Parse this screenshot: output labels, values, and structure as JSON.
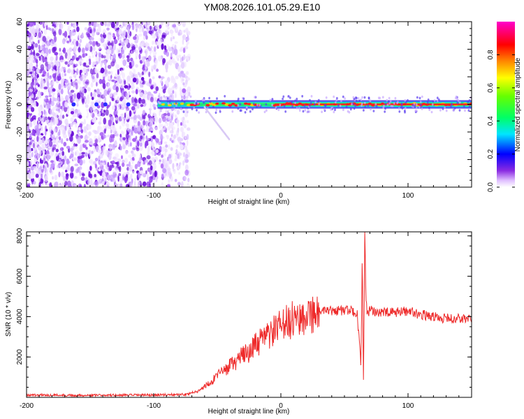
{
  "title": "YM08.2026.101.05.29.E10",
  "colors": {
    "snr_line": "#ee2a2a",
    "axes": "#000000"
  },
  "chart_data": [
    {
      "type": "heatmap",
      "title": "YM08.2026.101.05.29.E10",
      "xlabel": "Height of straight line (km)",
      "ylabel": "Frequency (Hz)",
      "xlim": [
        -200,
        150
      ],
      "ylim": [
        -60,
        60
      ],
      "xticks": [
        -200,
        -100,
        0,
        100
      ],
      "yticks": [
        -60,
        -40,
        -20,
        0,
        20,
        40,
        60
      ],
      "colorbar": {
        "label": "Normalized spectral amplitude",
        "range": [
          0.0,
          1.0
        ],
        "ticks": [
          0.0,
          0.2,
          0.4,
          0.6,
          0.8
        ],
        "colormap": "rainbow (magenta-blue-cyan-green-yellow-red-magenta)"
      },
      "features": [
        {
          "x_range": [
            -200,
            -75
          ],
          "freq_range": [
            -60,
            60
          ],
          "amplitude": "0.05-0.3 (scattered noise)"
        },
        {
          "x_range": [
            -97,
            150
          ],
          "frequency": 0,
          "amplitude": "0.4-1.0 (narrow band at 0 Hz)"
        }
      ]
    },
    {
      "type": "line",
      "xlabel": "Height of straight line (km)",
      "ylabel": "SNR (10 * v/v)",
      "xlim": [
        -200,
        150
      ],
      "ylim": [
        0,
        8200
      ],
      "xticks": [
        -200,
        -100,
        0,
        100
      ],
      "yticks": [
        2000,
        4000,
        6000,
        8000
      ],
      "series": [
        {
          "name": "SNR",
          "x": [
            -200,
            -150,
            -100,
            -75,
            -65,
            -55,
            -45,
            -35,
            -25,
            -15,
            -5,
            5,
            15,
            25,
            35,
            45,
            55,
            60,
            63,
            64,
            65,
            66,
            67,
            68,
            70,
            80,
            90,
            100,
            110,
            120,
            130,
            140,
            150
          ],
          "y": [
            120,
            100,
            120,
            150,
            300,
            800,
            1300,
            1800,
            2300,
            2800,
            3300,
            3700,
            4000,
            4200,
            4250,
            4300,
            4300,
            4200,
            1500,
            7200,
            400,
            8000,
            4800,
            4100,
            4300,
            4200,
            4200,
            4300,
            4100,
            4000,
            3900,
            3900,
            3900
          ]
        }
      ]
    }
  ]
}
